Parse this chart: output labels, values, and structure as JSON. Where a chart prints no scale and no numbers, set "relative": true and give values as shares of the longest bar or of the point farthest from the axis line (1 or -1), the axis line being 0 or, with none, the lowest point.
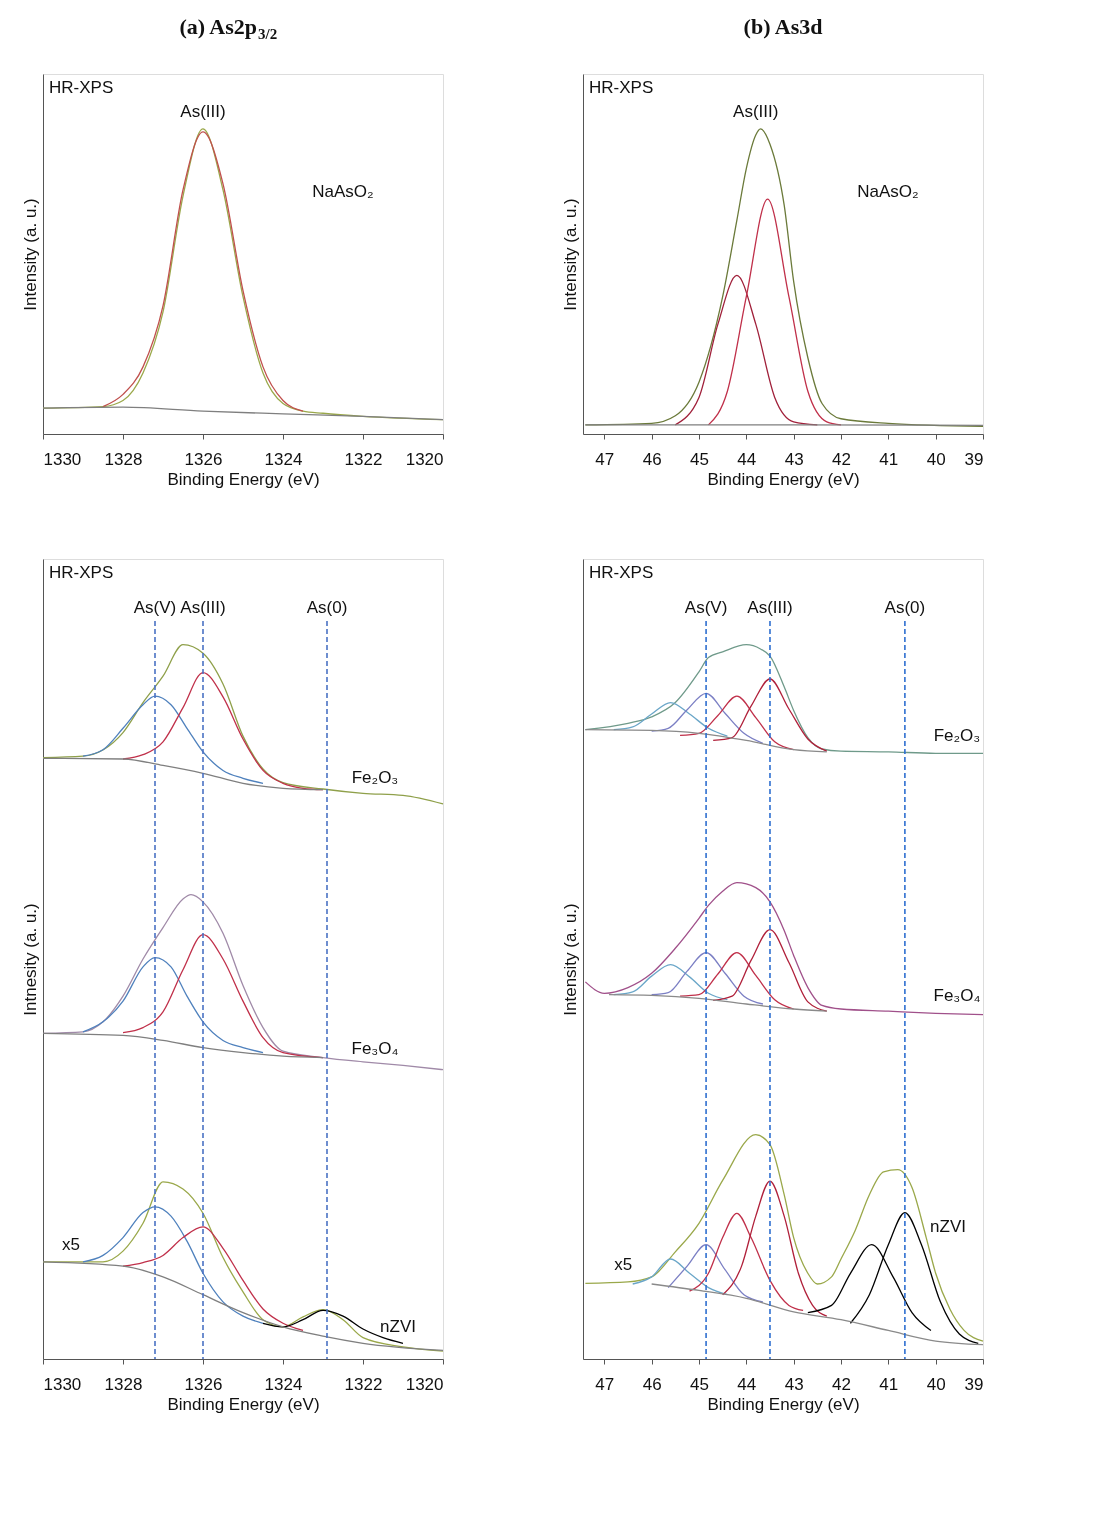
{
  "chart_data": [
    {
      "type": "line",
      "title": "(a) As2p$_{3/2}$",
      "xlabel": "Binding Energy (eV)",
      "ylabel": "Intensity (a. u.)",
      "relative": true,
      "xlim": [
        1330,
        1320
      ],
      "xticks": [
        1330,
        1328,
        1326,
        1324,
        1322,
        1320
      ],
      "annotations": [
        "HR-XPS",
        {
          "text": "As(III)",
          "x": 1326,
          "y": 1.0
        },
        "NaAsO₂"
      ],
      "series": [
        {
          "color": "#9aa84a",
          "x": [
            1330,
            1328.5,
            1328,
            1327.5,
            1327,
            1326.5,
            1326,
            1325.5,
            1325,
            1324.5,
            1324,
            1323.5,
            1323,
            1322,
            1320
          ],
          "values": [
            0.085,
            0.09,
            0.11,
            0.2,
            0.4,
            0.78,
            1.0,
            0.8,
            0.45,
            0.2,
            0.1,
            0.075,
            0.068,
            0.058,
            0.047
          ]
        },
        {
          "color": "#c0504d",
          "x": [
            1328.5,
            1328,
            1327.5,
            1327,
            1326.5,
            1326,
            1325.5,
            1325,
            1324.5,
            1324,
            1323.5
          ],
          "values": [
            0.09,
            0.13,
            0.22,
            0.42,
            0.8,
            0.99,
            0.82,
            0.47,
            0.22,
            0.11,
            0.075
          ]
        },
        {
          "color": "#7f7f7f",
          "x": [
            1330,
            1328,
            1326,
            1324,
            1322,
            1320
          ],
          "values": [
            0.085,
            0.088,
            0.075,
            0.066,
            0.058,
            0.047
          ]
        }
      ]
    },
    {
      "type": "line",
      "title": "(b) As3d",
      "xlabel": "Binding Energy (eV)",
      "ylabel": "Intensity (a. u.)",
      "relative": true,
      "xlim": [
        47.45,
        39
      ],
      "xticks": [
        47,
        46,
        45,
        44,
        43,
        42,
        41,
        40,
        39
      ],
      "annotations": [
        "HR-XPS",
        {
          "text": "As(III)",
          "x": 43.8,
          "y": 1.0
        },
        "NaAsO₂"
      ],
      "series": [
        {
          "color": "#6b7a3a",
          "x": [
            47.4,
            46,
            45.5,
            45,
            44.5,
            44.2,
            44,
            43.8,
            43.7,
            43.5,
            43.2,
            43,
            42.7,
            42.4,
            42,
            41,
            39
          ],
          "values": [
            0.03,
            0.035,
            0.06,
            0.17,
            0.45,
            0.7,
            0.87,
            0.98,
            1.0,
            0.95,
            0.75,
            0.5,
            0.25,
            0.1,
            0.05,
            0.035,
            0.025
          ]
        },
        {
          "color": "#a0203a",
          "x": [
            45.5,
            45,
            44.6,
            44.2,
            43.8,
            43.4,
            43,
            42.5
          ],
          "values": [
            0.03,
            0.12,
            0.36,
            0.52,
            0.36,
            0.12,
            0.04,
            0.03
          ]
        },
        {
          "color": "#c0304a",
          "x": [
            44.8,
            44.4,
            44,
            43.55,
            43.1,
            42.7,
            42.3,
            42
          ],
          "values": [
            0.03,
            0.14,
            0.45,
            0.77,
            0.45,
            0.14,
            0.04,
            0.03
          ]
        },
        {
          "color": "#7f7f7f",
          "x": [
            47.4,
            43,
            39
          ],
          "values": [
            0.03,
            0.03,
            0.028
          ]
        }
      ]
    },
    {
      "type": "line",
      "xlabel": "Binding Energy (eV)",
      "ylabel": "Intnesity  (a. u.)",
      "relative": true,
      "xlim": [
        1330,
        1320
      ],
      "xticks": [
        1330,
        1328,
        1326,
        1324,
        1322,
        1320
      ],
      "ref_lines": [
        {
          "axis": "x",
          "value": 1327.2,
          "label": "As(V)",
          "color": "#4a72c4",
          "line_style": "dashed"
        },
        {
          "axis": "x",
          "value": 1326.0,
          "label": "As(III)",
          "color": "#4a72c4",
          "line_style": "dashed"
        },
        {
          "axis": "x",
          "value": 1322.9,
          "label": "As(0)",
          "color": "#4a72c4",
          "line_style": "dashed"
        }
      ],
      "annotations": [
        "HR-XPS",
        {
          "text": "Fe₂O₃",
          "x": 1321.7,
          "y": 0.79
        },
        {
          "text": "Fe₃O₄",
          "x": 1321.7,
          "y": 0.41
        },
        "nZVI",
        {
          "text": "x5",
          "x": 1329.3,
          "y": 0.136
        }
      ],
      "series": [
        {
          "color": "#8fa04a",
          "x": [
            1330,
            1329,
            1328,
            1327.5,
            1327,
            1326.5,
            1326,
            1325.5,
            1325,
            1324.5,
            1324,
            1323,
            1322,
            1321,
            1320
          ],
          "values": [
            0.842,
            0.844,
            0.877,
            0.919,
            0.956,
            1.0,
            0.988,
            0.945,
            0.872,
            0.826,
            0.807,
            0.798,
            0.792,
            0.789,
            0.777
          ]
        },
        {
          "color": "#4f81bd",
          "x": [
            1329,
            1328.5,
            1328,
            1327.5,
            1327.2,
            1326.8,
            1326.4,
            1326,
            1325.5,
            1325,
            1324.5
          ],
          "values": [
            0.844,
            0.853,
            0.883,
            0.916,
            0.928,
            0.916,
            0.883,
            0.85,
            0.824,
            0.813,
            0.806
          ]
        },
        {
          "color": "#c0304a",
          "x": [
            1328,
            1327.5,
            1327,
            1326.5,
            1326,
            1325.5,
            1325,
            1324.5,
            1324,
            1323.5,
            1323
          ],
          "values": [
            0.84,
            0.846,
            0.864,
            0.912,
            0.961,
            0.927,
            0.868,
            0.824,
            0.806,
            0.799,
            0.797
          ]
        },
        {
          "color": "#7f7f7f",
          "x": [
            1330,
            1328,
            1327,
            1326,
            1325,
            1324,
            1323
          ],
          "values": [
            0.841,
            0.84,
            0.831,
            0.82,
            0.806,
            0.799,
            0.797
          ]
        },
        {
          "color": "#a08aa8",
          "x": [
            1330,
            1329,
            1328.5,
            1328,
            1327.5,
            1327,
            1326.5,
            1326.3,
            1326,
            1325.5,
            1325,
            1324.5,
            1324,
            1323,
            1322,
            1321,
            1320
          ],
          "values": [
            0.456,
            0.458,
            0.472,
            0.508,
            0.56,
            0.604,
            0.644,
            0.65,
            0.64,
            0.596,
            0.523,
            0.464,
            0.431,
            0.422,
            0.416,
            0.411,
            0.405
          ]
        },
        {
          "color": "#4f81bd",
          "x": [
            1329,
            1328.5,
            1328,
            1327.5,
            1327.2,
            1326.8,
            1326.4,
            1326,
            1325.5,
            1325,
            1324.5
          ],
          "values": [
            0.458,
            0.472,
            0.501,
            0.549,
            0.562,
            0.549,
            0.508,
            0.472,
            0.446,
            0.436,
            0.429
          ]
        },
        {
          "color": "#c0304a",
          "x": [
            1328,
            1327.5,
            1327,
            1326.5,
            1326,
            1325.5,
            1325,
            1324.5,
            1324,
            1323
          ],
          "values": [
            0.457,
            0.464,
            0.486,
            0.545,
            0.594,
            0.56,
            0.501,
            0.45,
            0.429,
            0.422
          ]
        },
        {
          "color": "#7f7f7f",
          "x": [
            1330,
            1328,
            1327,
            1326,
            1325,
            1324,
            1323
          ],
          "values": [
            0.456,
            0.453,
            0.446,
            0.436,
            0.429,
            0.424,
            0.422
          ]
        },
        {
          "color": "#9aa84a",
          "x": [
            1330,
            1328.5,
            1328,
            1327.5,
            1327,
            1326.5,
            1326,
            1325.5,
            1325,
            1324.5,
            1324,
            1323.5,
            1323,
            1322.5,
            1322,
            1321,
            1320
          ],
          "values": [
            0.136,
            0.136,
            0.151,
            0.19,
            0.248,
            0.238,
            0.204,
            0.142,
            0.094,
            0.055,
            0.045,
            0.059,
            0.069,
            0.055,
            0.03,
            0.017,
            0.011
          ]
        },
        {
          "color": "#4f81bd",
          "x": [
            1329,
            1328.5,
            1328,
            1327.5,
            1327.2,
            1326.8,
            1326.4,
            1326,
            1325.5,
            1325,
            1324.5
          ],
          "values": [
            0.136,
            0.145,
            0.17,
            0.205,
            0.213,
            0.2,
            0.165,
            0.12,
            0.08,
            0.06,
            0.05
          ]
        },
        {
          "color": "#c0304a",
          "x": [
            1328,
            1327.5,
            1327,
            1326.5,
            1326,
            1325.5,
            1325,
            1324.5,
            1324,
            1323.5
          ],
          "values": [
            0.13,
            0.135,
            0.145,
            0.17,
            0.185,
            0.155,
            0.11,
            0.07,
            0.05,
            0.04
          ]
        },
        {
          "color": "#000000",
          "x": [
            1324.5,
            1324,
            1323.5,
            1323,
            1322.5,
            1322,
            1321.5,
            1321
          ],
          "values": [
            0.05,
            0.045,
            0.055,
            0.068,
            0.06,
            0.042,
            0.03,
            0.022
          ]
        },
        {
          "color": "#7f7f7f",
          "x": [
            1330,
            1328,
            1327,
            1326,
            1325,
            1324,
            1323,
            1322,
            1320
          ],
          "values": [
            0.136,
            0.13,
            0.115,
            0.09,
            0.065,
            0.045,
            0.032,
            0.022,
            0.012
          ]
        }
      ]
    },
    {
      "type": "line",
      "xlabel": "Binding Energy (eV)",
      "ylabel": "Intensity (a. u.)",
      "relative": true,
      "xlim": [
        47.45,
        39
      ],
      "xticks": [
        47,
        46,
        45,
        44,
        43,
        42,
        41,
        40,
        39
      ],
      "ref_lines": [
        {
          "axis": "x",
          "value": 44.85,
          "label": "As(V)",
          "color": "#2f6fd0",
          "line_style": "dashed"
        },
        {
          "axis": "x",
          "value": 43.5,
          "label": "As(III)",
          "color": "#2f6fd0",
          "line_style": "dashed"
        },
        {
          "axis": "x",
          "value": 40.65,
          "label": "As(0)",
          "color": "#2f6fd0",
          "line_style": "dashed"
        }
      ],
      "annotations": [
        "HR-XPS",
        {
          "text": "Fe₂O₃",
          "x": 39.55,
          "y": 0.848
        },
        {
          "text": "Fe₃O₄",
          "x": 39.55,
          "y": 0.484
        },
        "nZVI",
        {
          "text": "x5",
          "x": 46.6,
          "y": 0.108
        }
      ],
      "series": [
        {
          "color": "#6f9a8a",
          "x": [
            47.4,
            46.5,
            46,
            45.5,
            45,
            44.8,
            44.5,
            44,
            43.7,
            43.5,
            43.2,
            43,
            42.7,
            42.4,
            42,
            41,
            40,
            39
          ],
          "values": [
            0.881,
            0.89,
            0.899,
            0.919,
            0.962,
            0.982,
            0.99,
            1.0,
            0.994,
            0.984,
            0.941,
            0.908,
            0.87,
            0.854,
            0.851,
            0.85,
            0.848,
            0.848
          ]
        },
        {
          "color": "#6aa6c8",
          "x": [
            46.8,
            46.4,
            46,
            45.6,
            45.2,
            44.8,
            44.4
          ],
          "values": [
            0.881,
            0.885,
            0.903,
            0.919,
            0.903,
            0.883,
            0.872
          ]
        },
        {
          "color": "#7b7fc4",
          "x": [
            46,
            45.65,
            45.25,
            44.85,
            44.45,
            44.05,
            43.65
          ],
          "values": [
            0.879,
            0.883,
            0.909,
            0.932,
            0.904,
            0.876,
            0.862
          ]
        },
        {
          "color": "#c0304a",
          "x": [
            45.4,
            45,
            44.6,
            44.2,
            43.8,
            43.4,
            43
          ],
          "values": [
            0.873,
            0.876,
            0.901,
            0.928,
            0.898,
            0.864,
            0.853
          ]
        },
        {
          "color": "#b0203a",
          "x": [
            44.7,
            44.3,
            43.9,
            43.5,
            43.1,
            42.7,
            42.3
          ],
          "values": [
            0.866,
            0.87,
            0.914,
            0.952,
            0.91,
            0.868,
            0.851
          ]
        },
        {
          "color": "#8a8a8a",
          "x": [
            47.4,
            46,
            45,
            44,
            43,
            42.3
          ],
          "values": [
            0.881,
            0.88,
            0.876,
            0.866,
            0.853,
            0.85
          ]
        },
        {
          "color": "#a0508a",
          "x": [
            47.4,
            47,
            46.5,
            46,
            45.5,
            45,
            44.8,
            44.5,
            44.2,
            43.8,
            43.5,
            43.2,
            43,
            42.7,
            42.4,
            42,
            41,
            40,
            39
          ],
          "values": [
            0.528,
            0.512,
            0.52,
            0.54,
            0.575,
            0.617,
            0.635,
            0.655,
            0.667,
            0.66,
            0.64,
            0.6,
            0.565,
            0.52,
            0.495,
            0.49,
            0.487,
            0.484,
            0.482
          ]
        },
        {
          "color": "#6aa6c8",
          "x": [
            46.8,
            46.4,
            46,
            45.6,
            45.2,
            44.8,
            44.4
          ],
          "values": [
            0.51,
            0.514,
            0.536,
            0.552,
            0.535,
            0.512,
            0.503
          ]
        },
        {
          "color": "#7b7fc4",
          "x": [
            46,
            45.65,
            45.25,
            44.85,
            44.45,
            44.05,
            43.65
          ],
          "values": [
            0.51,
            0.513,
            0.543,
            0.569,
            0.54,
            0.508,
            0.497
          ]
        },
        {
          "color": "#c0304a",
          "x": [
            45.4,
            45,
            44.6,
            44.2,
            43.8,
            43.4,
            43
          ],
          "values": [
            0.508,
            0.51,
            0.539,
            0.569,
            0.537,
            0.503,
            0.49
          ]
        },
        {
          "color": "#b0203a",
          "x": [
            44.7,
            44.3,
            43.9,
            43.5,
            43.1,
            42.7,
            42.3
          ],
          "values": [
            0.502,
            0.508,
            0.558,
            0.601,
            0.555,
            0.5,
            0.487
          ]
        },
        {
          "color": "#8a8a8a",
          "x": [
            46.9,
            46,
            45,
            44,
            43,
            42.3
          ],
          "values": [
            0.51,
            0.509,
            0.505,
            0.497,
            0.49,
            0.487
          ]
        },
        {
          "color": "#9aa84a",
          "x": [
            47.4,
            46.5,
            46,
            45.5,
            45,
            44.5,
            43.8,
            43.5,
            43.2,
            43,
            42.7,
            42.5,
            42.2,
            42,
            41.7,
            41.4,
            41.1,
            40.8,
            40.5,
            40.2,
            40,
            39.7,
            39.4,
            39
          ],
          "values": [
            0.106,
            0.108,
            0.115,
            0.15,
            0.19,
            0.25,
            0.314,
            0.3,
            0.23,
            0.17,
            0.12,
            0.105,
            0.115,
            0.14,
            0.18,
            0.23,
            0.262,
            0.265,
            0.24,
            0.17,
            0.12,
            0.07,
            0.04,
            0.025
          ]
        },
        {
          "color": "#6aa6c8",
          "x": [
            46.4,
            46,
            45.6,
            45.2,
            44.8,
            44.4
          ],
          "values": [
            0.105,
            0.115,
            0.14,
            0.12,
            0.1,
            0.09
          ]
        },
        {
          "color": "#7b7fc4",
          "x": [
            45.65,
            45.25,
            44.85,
            44.45,
            44.05,
            43.65
          ],
          "values": [
            0.1,
            0.13,
            0.16,
            0.125,
            0.09,
            0.08
          ]
        },
        {
          "color": "#c0304a",
          "x": [
            45.2,
            44.8,
            44.5,
            44.2,
            43.9,
            43.5,
            43.1,
            42.8
          ],
          "values": [
            0.095,
            0.12,
            0.17,
            0.204,
            0.17,
            0.11,
            0.075,
            0.068
          ]
        },
        {
          "color": "#b0203a",
          "x": [
            44.5,
            44.1,
            43.8,
            43.5,
            43.2,
            42.9,
            42.6,
            42.3
          ],
          "values": [
            0.09,
            0.13,
            0.2,
            0.249,
            0.2,
            0.12,
            0.075,
            0.06
          ]
        },
        {
          "color": "#000000",
          "x": [
            42.7,
            42.2,
            41.8,
            41.35,
            40.9,
            40.5,
            40.1
          ],
          "values": [
            0.065,
            0.075,
            0.12,
            0.16,
            0.115,
            0.065,
            0.04
          ]
        },
        {
          "color": "#000000",
          "x": [
            41.8,
            41.4,
            41,
            40.65,
            40.3,
            39.9,
            39.5,
            39.1
          ],
          "values": [
            0.05,
            0.09,
            0.16,
            0.205,
            0.16,
            0.08,
            0.035,
            0.022
          ]
        },
        {
          "color": "#8a8a8a",
          "x": [
            46,
            45,
            44,
            43,
            42,
            41,
            40,
            39
          ],
          "values": [
            0.105,
            0.096,
            0.085,
            0.066,
            0.055,
            0.04,
            0.025,
            0.02
          ]
        }
      ]
    }
  ]
}
